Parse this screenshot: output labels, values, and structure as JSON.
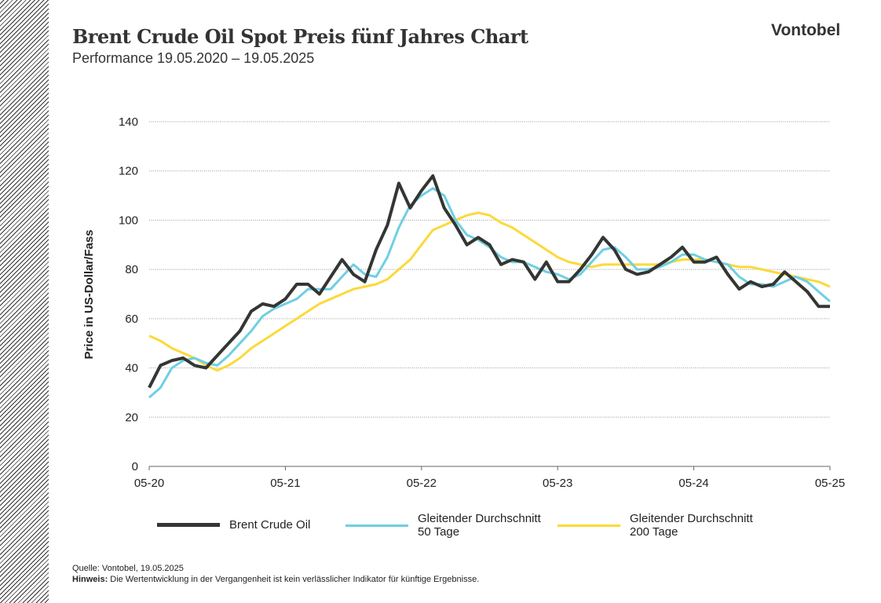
{
  "header": {
    "title": "Brent Crude Oil Spot Preis fünf Jahres Chart",
    "subtitle": "Performance 19.05.2020 – 19.05.2025",
    "logo": "Vontobel"
  },
  "footer": {
    "source": "Quelle: Vontobel, 19.05.2025",
    "note_label": "Hinweis:",
    "note": " Die Wertentwicklung in der Vergangenheit ist kein verlässlicher Indikator für künftige Ergebnisse."
  },
  "chart_data": {
    "type": "line",
    "ylabel": "Price in US-Dollar/Fass",
    "ylim": [
      0,
      140
    ],
    "yticks": [
      0,
      20,
      40,
      60,
      80,
      100,
      120,
      140
    ],
    "xticks": [
      "05-20",
      "05-21",
      "05-22",
      "05-23",
      "05-24",
      "05-25"
    ],
    "grid": true,
    "legend": "bottom",
    "x": [
      "2020-05",
      "2020-06",
      "2020-07",
      "2020-08",
      "2020-09",
      "2020-10",
      "2020-11",
      "2020-12",
      "2021-01",
      "2021-02",
      "2021-03",
      "2021-04",
      "2021-05",
      "2021-06",
      "2021-07",
      "2021-08",
      "2021-09",
      "2021-10",
      "2021-11",
      "2021-12",
      "2022-01",
      "2022-02",
      "2022-03",
      "2022-04",
      "2022-05",
      "2022-06",
      "2022-07",
      "2022-08",
      "2022-09",
      "2022-10",
      "2022-11",
      "2022-12",
      "2023-01",
      "2023-02",
      "2023-03",
      "2023-04",
      "2023-05",
      "2023-06",
      "2023-07",
      "2023-08",
      "2023-09",
      "2023-10",
      "2023-11",
      "2023-12",
      "2024-01",
      "2024-02",
      "2024-03",
      "2024-04",
      "2024-05",
      "2024-06",
      "2024-07",
      "2024-08",
      "2024-09",
      "2024-10",
      "2024-11",
      "2024-12",
      "2025-01",
      "2025-02",
      "2025-03",
      "2025-04",
      "2025-05"
    ],
    "series": [
      {
        "name": "Brent Crude Oil",
        "color": "#333633",
        "values": [
          32,
          41,
          43,
          44,
          41,
          40,
          45,
          50,
          55,
          63,
          66,
          65,
          68,
          74,
          74,
          70,
          77,
          84,
          78,
          75,
          88,
          98,
          115,
          105,
          112,
          118,
          105,
          98,
          90,
          93,
          90,
          82,
          84,
          83,
          76,
          83,
          75,
          75,
          80,
          86,
          93,
          88,
          80,
          78,
          79,
          82,
          85,
          89,
          83,
          83,
          85,
          78,
          72,
          75,
          73,
          74,
          79,
          75,
          71,
          65,
          65
        ]
      },
      {
        "name": "Gleitender Durchschnitt\n50 Tage",
        "color": "#6fcfe2",
        "values": [
          28,
          32,
          40,
          43,
          44,
          42,
          41,
          45,
          50,
          55,
          61,
          64,
          66,
          68,
          72,
          72,
          72,
          77,
          82,
          78,
          77,
          85,
          97,
          106,
          110,
          113,
          110,
          100,
          94,
          92,
          89,
          85,
          83,
          83,
          81,
          79,
          78,
          76,
          78,
          83,
          88,
          89,
          85,
          80,
          80,
          81,
          83,
          86,
          86,
          84,
          83,
          82,
          77,
          74,
          74,
          73,
          75,
          77,
          75,
          71,
          67
        ]
      },
      {
        "name": "Gleitender Durchschnitt\n200 Tage",
        "color": "#fcd93a",
        "values": [
          53,
          51,
          48,
          46,
          44,
          41,
          39,
          41,
          44,
          48,
          51,
          54,
          57,
          60,
          63,
          66,
          68,
          70,
          72,
          73,
          74,
          76,
          80,
          84,
          90,
          96,
          98,
          100,
          102,
          103,
          102,
          99,
          97,
          94,
          91,
          88,
          85,
          83,
          82,
          81,
          82,
          82,
          82,
          82,
          82,
          82,
          83,
          84,
          84,
          84,
          83,
          82,
          81,
          81,
          80,
          79,
          78,
          77,
          76,
          75,
          73
        ]
      }
    ]
  },
  "legend": {
    "items": [
      {
        "l1": "Brent Crude Oil",
        "l2": ""
      },
      {
        "l1": "Gleitender Durchschnitt",
        "l2": "50 Tage"
      },
      {
        "l1": "Gleitender Durchschnitt",
        "l2": "200 Tage"
      }
    ]
  }
}
